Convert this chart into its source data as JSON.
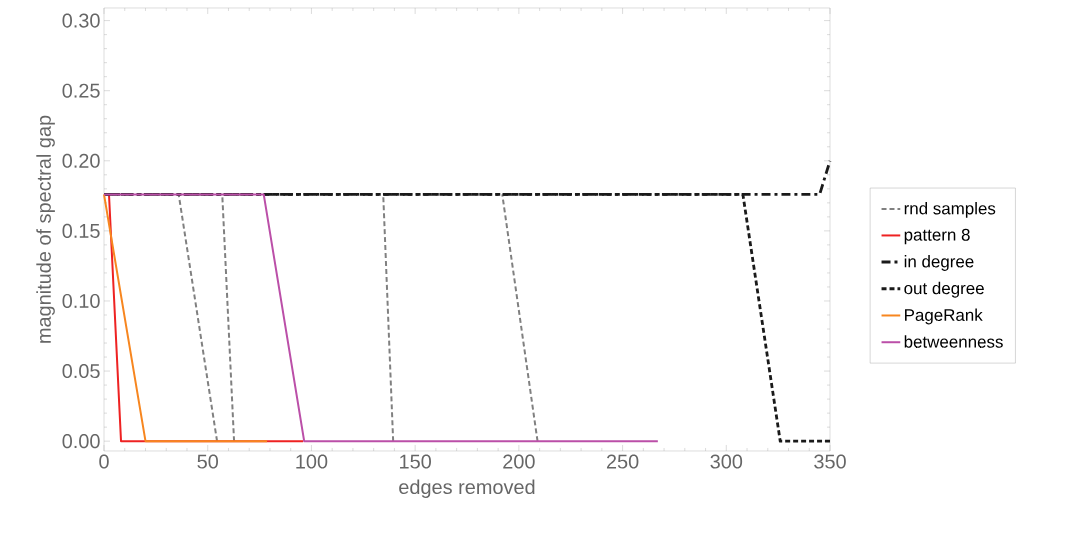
{
  "chart_data": {
    "type": "line",
    "xlabel": "edges removed",
    "ylabel": "magnitude of spectral gap",
    "xlim": [
      0,
      350
    ],
    "ylim": [
      -0.007,
      0.309
    ],
    "xticks": [
      0,
      50,
      100,
      150,
      200,
      250,
      300,
      350
    ],
    "yticks": [
      {
        "value": 0,
        "label": "0.00"
      },
      {
        "value": 0.05,
        "label": "0.05"
      },
      {
        "value": 0.1,
        "label": "0.10"
      },
      {
        "value": 0.15,
        "label": "0.15"
      },
      {
        "value": 0.2,
        "label": "0.20"
      },
      {
        "value": 0.25,
        "label": "0.25"
      },
      {
        "value": 0.3,
        "label": "0.30"
      }
    ],
    "grid": false,
    "legend": "right",
    "marker": "none",
    "series": [
      {
        "name": "rnd samples",
        "color": "#808080",
        "line_style": "dashed",
        "x": [
          36,
          54.5
        ],
        "values": [
          0.176,
          0
        ]
      },
      {
        "color": "#808080",
        "line_style": "dashed",
        "x": [
          57,
          62.7
        ],
        "values": [
          0.176,
          0
        ]
      },
      {
        "color": "#808080",
        "line_style": "dashed",
        "x": [
          134.6,
          139.4
        ],
        "values": [
          0.176,
          0
        ]
      },
      {
        "color": "#808080",
        "line_style": "dashed",
        "x": [
          192,
          209
        ],
        "values": [
          0.176,
          0
        ]
      },
      {
        "name": "pattern 8",
        "color": "#ee2222",
        "line_style": "solid",
        "x": [
          0,
          2.4,
          8.2,
          96
        ],
        "values": [
          0.176,
          0.176,
          0,
          0
        ]
      },
      {
        "name": "in degree",
        "color": "#1a1a1a",
        "line_style": "dashdot",
        "x": [
          0,
          345,
          350
        ],
        "values": [
          0.176,
          0.176,
          0.2
        ]
      },
      {
        "name": "out degree",
        "color": "#1a1a1a",
        "line_style": "dashed",
        "x": [
          0,
          308,
          326,
          350
        ],
        "values": [
          0.176,
          0.176,
          0,
          0
        ]
      },
      {
        "name": "PageRank",
        "color": "#f7861f",
        "line_style": "solid",
        "x": [
          0,
          20,
          78.6
        ],
        "values": [
          0.176,
          0,
          0
        ]
      },
      {
        "name": "betweenness",
        "color": "#bb4fa8",
        "line_style": "solid",
        "x": [
          0,
          77,
          96.5,
          267
        ],
        "values": [
          0.176,
          0.176,
          0,
          0
        ]
      }
    ]
  }
}
